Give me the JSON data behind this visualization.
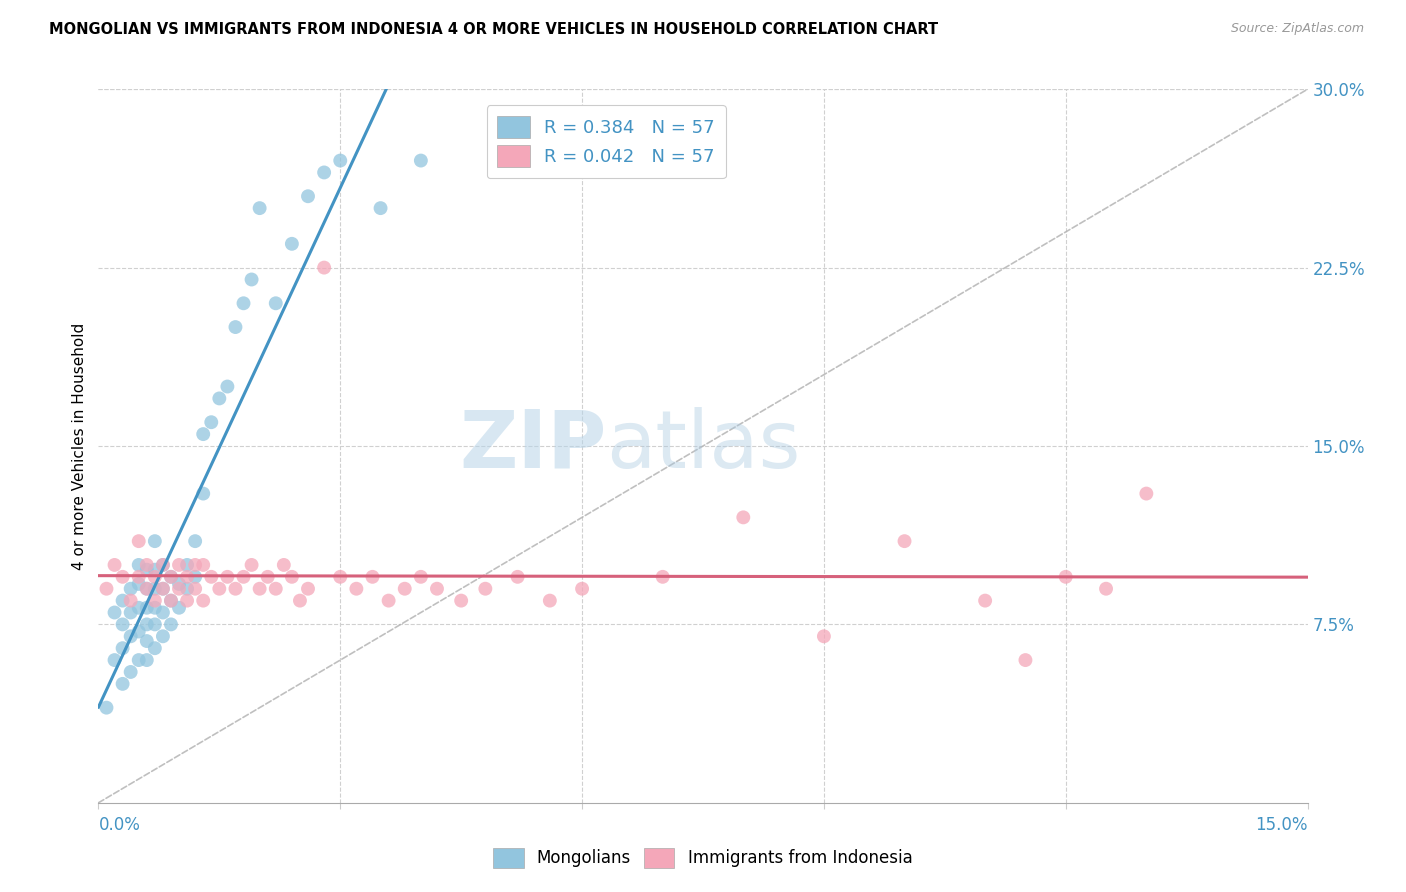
{
  "title": "MONGOLIAN VS IMMIGRANTS FROM INDONESIA 4 OR MORE VEHICLES IN HOUSEHOLD CORRELATION CHART",
  "source": "Source: ZipAtlas.com",
  "ylabel": "4 or more Vehicles in Household",
  "xlim": [
    0.0,
    0.15
  ],
  "ylim": [
    0.0,
    0.3
  ],
  "legend1_label": "R = 0.384   N = 57",
  "legend2_label": "R = 0.042   N = 57",
  "legend_bottom1": "Mongolians",
  "legend_bottom2": "Immigrants from Indonesia",
  "blue_color": "#92c5de",
  "pink_color": "#f4a7b9",
  "blue_line_color": "#4393c3",
  "pink_line_color": "#d6617b",
  "dashed_line_color": "#b0b0b0",
  "watermark_zip": "ZIP",
  "watermark_atlas": "atlas",
  "mongolian_x": [
    0.001,
    0.002,
    0.002,
    0.003,
    0.003,
    0.003,
    0.003,
    0.004,
    0.004,
    0.004,
    0.004,
    0.005,
    0.005,
    0.005,
    0.005,
    0.005,
    0.006,
    0.006,
    0.006,
    0.006,
    0.006,
    0.006,
    0.007,
    0.007,
    0.007,
    0.007,
    0.007,
    0.007,
    0.008,
    0.008,
    0.008,
    0.008,
    0.009,
    0.009,
    0.009,
    0.01,
    0.01,
    0.011,
    0.011,
    0.012,
    0.012,
    0.013,
    0.013,
    0.014,
    0.015,
    0.016,
    0.017,
    0.018,
    0.019,
    0.02,
    0.022,
    0.024,
    0.026,
    0.028,
    0.03,
    0.035,
    0.04
  ],
  "mongolian_y": [
    0.04,
    0.06,
    0.08,
    0.05,
    0.065,
    0.075,
    0.085,
    0.055,
    0.07,
    0.08,
    0.09,
    0.06,
    0.072,
    0.082,
    0.092,
    0.1,
    0.06,
    0.068,
    0.075,
    0.082,
    0.09,
    0.098,
    0.065,
    0.075,
    0.082,
    0.09,
    0.098,
    0.11,
    0.07,
    0.08,
    0.09,
    0.1,
    0.075,
    0.085,
    0.095,
    0.082,
    0.092,
    0.09,
    0.1,
    0.095,
    0.11,
    0.13,
    0.155,
    0.16,
    0.17,
    0.175,
    0.2,
    0.21,
    0.22,
    0.25,
    0.21,
    0.235,
    0.255,
    0.265,
    0.27,
    0.25,
    0.27
  ],
  "indonesia_x": [
    0.001,
    0.002,
    0.003,
    0.004,
    0.005,
    0.005,
    0.006,
    0.006,
    0.007,
    0.007,
    0.008,
    0.008,
    0.009,
    0.009,
    0.01,
    0.01,
    0.011,
    0.011,
    0.012,
    0.012,
    0.013,
    0.013,
    0.014,
    0.015,
    0.016,
    0.017,
    0.018,
    0.019,
    0.02,
    0.021,
    0.022,
    0.023,
    0.024,
    0.025,
    0.026,
    0.028,
    0.03,
    0.032,
    0.034,
    0.036,
    0.038,
    0.04,
    0.042,
    0.045,
    0.048,
    0.052,
    0.056,
    0.06,
    0.07,
    0.08,
    0.09,
    0.1,
    0.11,
    0.115,
    0.12,
    0.125,
    0.13
  ],
  "indonesia_y": [
    0.09,
    0.1,
    0.095,
    0.085,
    0.095,
    0.11,
    0.09,
    0.1,
    0.085,
    0.095,
    0.09,
    0.1,
    0.085,
    0.095,
    0.09,
    0.1,
    0.085,
    0.095,
    0.09,
    0.1,
    0.085,
    0.1,
    0.095,
    0.09,
    0.095,
    0.09,
    0.095,
    0.1,
    0.09,
    0.095,
    0.09,
    0.1,
    0.095,
    0.085,
    0.09,
    0.225,
    0.095,
    0.09,
    0.095,
    0.085,
    0.09,
    0.095,
    0.09,
    0.085,
    0.09,
    0.095,
    0.085,
    0.09,
    0.095,
    0.12,
    0.07,
    0.11,
    0.085,
    0.06,
    0.095,
    0.09,
    0.13
  ]
}
